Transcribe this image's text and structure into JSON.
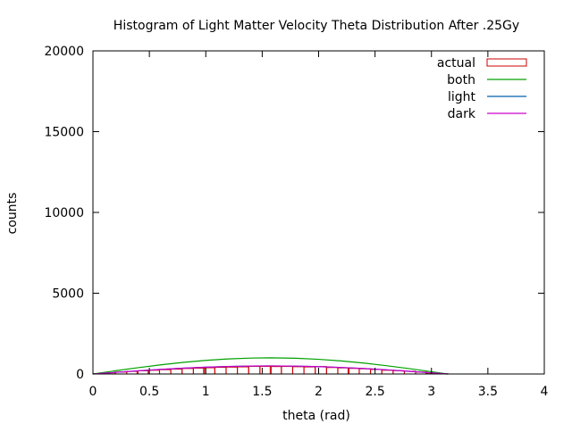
{
  "chart_data": {
    "type": "bar",
    "title": "Histogram of Light Matter Velocity Theta Distribution After .25Gy",
    "xlabel": "theta (rad)",
    "ylabel": "counts",
    "xlim": [
      0,
      4
    ],
    "ylim": [
      0,
      20000
    ],
    "xticks": [
      "0",
      "0.5",
      "1",
      "1.5",
      "2",
      "2.5",
      "3",
      "3.5",
      "4"
    ],
    "yticks": [
      "0",
      "5000",
      "10000",
      "15000",
      "20000"
    ],
    "grid": false,
    "legend_position": "top-right",
    "bin_width": 0.0985,
    "bins_x": [
      0.05,
      0.15,
      0.25,
      0.35,
      0.44,
      0.54,
      0.64,
      0.74,
      0.84,
      0.94,
      1.03,
      1.13,
      1.23,
      1.33,
      1.43,
      1.53,
      1.62,
      1.72,
      1.82,
      1.92,
      2.02,
      2.12,
      2.22,
      2.31,
      2.41,
      2.51,
      2.61,
      2.71,
      2.81,
      2.91,
      3.0,
      3.1
    ],
    "series": [
      {
        "name": "actual",
        "type": "histogram",
        "color": "#cc0000",
        "values": [
          25,
          70,
          120,
          160,
          195,
          230,
          265,
          300,
          340,
          360,
          385,
          410,
          425,
          440,
          470,
          470,
          460,
          465,
          450,
          435,
          460,
          400,
          375,
          345,
          320,
          280,
          230,
          205,
          170,
          120,
          60,
          15
        ]
      },
      {
        "name": "both",
        "type": "line",
        "color": "#00a000",
        "x": [
          0,
          0.2,
          0.4,
          0.6,
          0.8,
          1.0,
          1.2,
          1.4,
          1.571,
          1.8,
          2.0,
          2.2,
          2.4,
          2.6,
          2.8,
          3.0,
          3.1416
        ],
        "values": [
          0,
          199,
          389,
          565,
          717,
          841,
          932,
          985,
          1000,
          974,
          909,
          808,
          675,
          516,
          335,
          141,
          0
        ]
      },
      {
        "name": "light",
        "type": "line",
        "color": "#0060ad",
        "x": [
          0,
          0.2,
          0.4,
          0.6,
          0.8,
          1.0,
          1.2,
          1.4,
          1.571,
          1.8,
          2.0,
          2.2,
          2.4,
          2.6,
          2.8,
          3.0,
          3.1416
        ],
        "values": [
          0,
          99,
          195,
          282,
          359,
          421,
          466,
          493,
          500,
          487,
          455,
          404,
          338,
          258,
          167,
          71,
          0
        ]
      },
      {
        "name": "dark",
        "type": "line",
        "color": "#cc00cc",
        "x": [
          0,
          0.2,
          0.4,
          0.6,
          0.8,
          1.0,
          1.2,
          1.4,
          1.571,
          1.8,
          2.0,
          2.2,
          2.4,
          2.6,
          2.8,
          3.0,
          3.1416
        ],
        "values": [
          0,
          99,
          195,
          282,
          359,
          421,
          466,
          493,
          500,
          487,
          455,
          404,
          338,
          258,
          167,
          71,
          0
        ]
      }
    ]
  }
}
